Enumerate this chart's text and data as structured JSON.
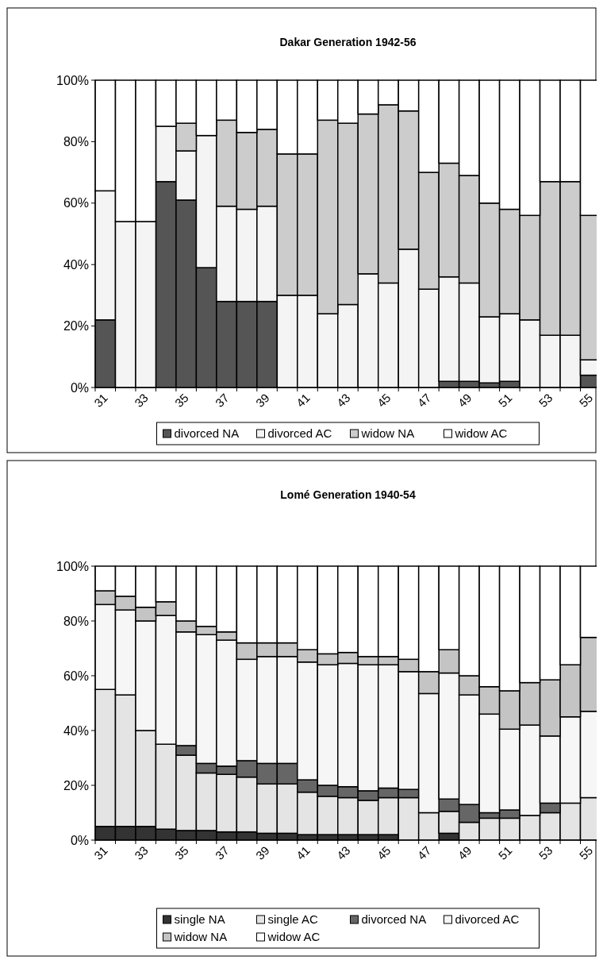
{
  "chart_data": [
    {
      "type": "bar",
      "title": "Dakar Generation 1942-56",
      "stacked": true,
      "legend": "bottom",
      "categories": [
        "31",
        null,
        "33",
        null,
        "35",
        null,
        "37",
        null,
        "39",
        null,
        "41",
        null,
        "43",
        null,
        "45",
        null,
        "47",
        null,
        "49",
        null,
        "51",
        null,
        "53",
        null,
        "55"
      ],
      "ylim": [
        0,
        100
      ],
      "yticks": [
        {
          "value": 0,
          "label": "0%"
        },
        {
          "value": 20,
          "label": "20%"
        },
        {
          "value": 40,
          "label": "40%"
        },
        {
          "value": 60,
          "label": "60%"
        },
        {
          "value": 80,
          "label": "80%"
        },
        {
          "value": 100,
          "label": "100%"
        }
      ],
      "series": [
        {
          "name": "divorced NA",
          "color": "#555555",
          "values": [
            22,
            0,
            0,
            67,
            61,
            39,
            28,
            28,
            28,
            0,
            0,
            0,
            0,
            0,
            0,
            0,
            0,
            2,
            2,
            1.5,
            2,
            0,
            0,
            0,
            4
          ]
        },
        {
          "name": "divorced AC",
          "color": "#f4f4f4",
          "values": [
            42,
            54,
            54,
            18,
            16,
            43,
            31,
            30,
            31,
            30,
            30,
            24,
            27,
            37,
            34,
            45,
            32,
            34,
            32,
            21.5,
            22,
            22,
            17,
            17,
            5
          ]
        },
        {
          "name": "widow NA",
          "color": "#cccccc",
          "values": [
            0,
            0,
            0,
            0,
            9,
            0,
            28,
            25,
            25,
            46,
            46,
            63,
            59,
            52,
            58,
            45,
            38,
            37,
            35,
            37,
            34,
            34,
            50,
            50,
            47
          ]
        },
        {
          "name": "widow AC",
          "color": "#ffffff",
          "values": [
            36,
            46,
            46,
            15,
            14,
            18,
            13,
            17,
            16,
            24,
            24,
            13,
            14,
            11,
            8,
            10,
            30,
            27,
            31,
            40,
            42,
            44,
            33,
            33,
            44
          ]
        }
      ]
    },
    {
      "type": "bar",
      "title": "Lomé Generation 1940-54",
      "stacked": true,
      "legend": "bottom",
      "categories": [
        "31",
        null,
        "33",
        null,
        "35",
        null,
        "37",
        null,
        "39",
        null,
        "41",
        null,
        "43",
        null,
        "45",
        null,
        "47",
        null,
        "49",
        null,
        "51",
        null,
        "53",
        null,
        "55"
      ],
      "ylim": [
        0,
        100
      ],
      "yticks": [
        {
          "value": 0,
          "label": "0%"
        },
        {
          "value": 20,
          "label": "20%"
        },
        {
          "value": 40,
          "label": "40%"
        },
        {
          "value": 60,
          "label": "60%"
        },
        {
          "value": 80,
          "label": "80%"
        },
        {
          "value": 100,
          "label": "100%"
        }
      ],
      "series": [
        {
          "name": "single NA",
          "color": "#333333",
          "values": [
            5,
            5,
            5,
            4,
            3.5,
            3.5,
            3,
            3,
            2.5,
            2.5,
            2,
            2,
            2,
            2,
            2,
            0,
            0,
            2.5,
            0,
            0,
            0,
            0,
            0,
            0,
            0
          ]
        },
        {
          "name": "single AC",
          "color": "#e4e4e4",
          "values": [
            50,
            48,
            35,
            31,
            27.5,
            21,
            21,
            20,
            18,
            18,
            15.5,
            14,
            13.5,
            12.5,
            13.5,
            15.5,
            10,
            8,
            6.5,
            8,
            8,
            9,
            10,
            13.5,
            15.5
          ]
        },
        {
          "name": "divorced NA",
          "color": "#666666",
          "values": [
            0,
            0,
            0,
            0,
            3.5,
            3.5,
            3,
            6,
            7.5,
            7.5,
            4.5,
            4,
            4,
            3.5,
            3.5,
            3,
            0,
            4.5,
            6.5,
            2,
            3,
            0,
            3.5,
            0,
            0
          ]
        },
        {
          "name": "divorced AC",
          "color": "#f6f6f6",
          "values": [
            31,
            31,
            40,
            47,
            41.5,
            47,
            46,
            37,
            39,
            39,
            43,
            44,
            45,
            46,
            45,
            43,
            43.5,
            46,
            40,
            36,
            29.5,
            33,
            24.5,
            31.5,
            31.5
          ]
        },
        {
          "name": "widow NA",
          "color": "#c4c4c4",
          "values": [
            5,
            5,
            5,
            5,
            4,
            3,
            3,
            6,
            5,
            5,
            4.5,
            4,
            4,
            3,
            3,
            4.5,
            8,
            8.5,
            7,
            10,
            14,
            15.5,
            20.5,
            19,
            27
          ]
        },
        {
          "name": "widow AC",
          "color": "#ffffff",
          "values": [
            9,
            11,
            15,
            13,
            20,
            22,
            24,
            28,
            28,
            28,
            30.5,
            32,
            31.5,
            33,
            33,
            34,
            38.5,
            30.5,
            40,
            44,
            45.5,
            42.5,
            41.5,
            36,
            26
          ]
        }
      ]
    }
  ]
}
